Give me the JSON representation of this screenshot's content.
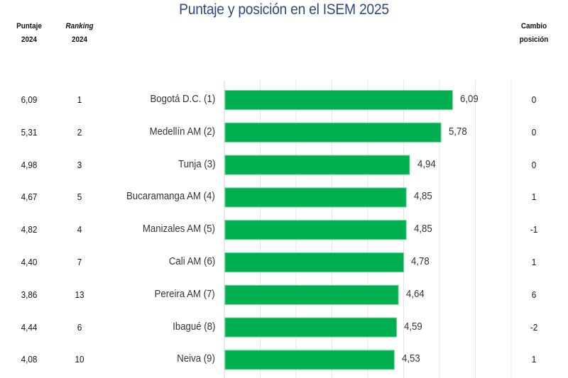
{
  "title": "Puntaje y posición en el ISEM 2025",
  "headers": {
    "score_2024": [
      "Puntaje",
      "2024"
    ],
    "rank_2024": [
      "Ranking",
      "2024"
    ],
    "change": [
      "Cambio",
      "posición"
    ]
  },
  "colors": {
    "bar": "#00b050",
    "title": "#2e4a7d",
    "grid": "#e6e6e6"
  },
  "chart_data": {
    "type": "bar",
    "orientation": "horizontal",
    "title": "Puntaje y posición en el ISEM 2025",
    "xlabel": "",
    "ylabel": "",
    "xlim": [
      0,
      7.7
    ],
    "grid": true,
    "categories": [
      "Bogotá D.C. (1)",
      "Medellín AM (2)",
      "Tunja (3)",
      "Bucaramanga AM (4)",
      "Manizales AM (5)",
      "Cali AM (6)",
      "Pereira AM (7)",
      "Ibagué (8)",
      "Neiva (9)"
    ],
    "values": [
      6.09,
      5.78,
      4.94,
      4.85,
      4.85,
      4.78,
      4.64,
      4.59,
      4.53
    ],
    "value_labels": [
      "6,09",
      "5,78",
      "4,94",
      "4,85",
      "4,85",
      "4,78",
      "4,64",
      "4,59",
      "4,53"
    ]
  },
  "table": {
    "score_2024": [
      "6,09",
      "5,31",
      "4,98",
      "4,67",
      "4,82",
      "4,40",
      "3,86",
      "4,44",
      "4,08"
    ],
    "rank_2024": [
      "1",
      "2",
      "3",
      "5",
      "4",
      "7",
      "13",
      "6",
      "10"
    ],
    "change": [
      "0",
      "0",
      "0",
      "1",
      "-1",
      "1",
      "6",
      "-2",
      "1"
    ]
  }
}
